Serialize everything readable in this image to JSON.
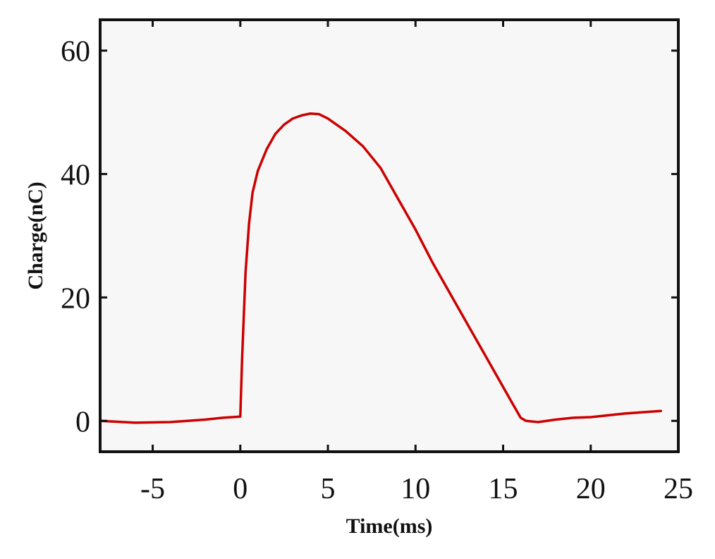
{
  "chart_data": {
    "type": "line",
    "title": "",
    "xlabel": "Time(ms)",
    "ylabel": "Charge(nC)",
    "xlim": [
      -8,
      25
    ],
    "ylim": [
      -5,
      65
    ],
    "xticks": [
      -5,
      0,
      5,
      10,
      15,
      20,
      25
    ],
    "yticks": [
      0,
      20,
      40,
      60
    ],
    "grid": false,
    "legend": "none",
    "colors": {
      "line": "#cc0000",
      "axes": "#111111",
      "plot_bg": "#f7f7f7"
    },
    "series": [
      {
        "x": [
          -8,
          -6,
          -4,
          -2,
          -1,
          0,
          0.1,
          0.3,
          0.5,
          0.7,
          1,
          1.5,
          2,
          2.5,
          3,
          3.5,
          4,
          4.5,
          5,
          6,
          7,
          8,
          9,
          10,
          11,
          12,
          13,
          14,
          15,
          15.5,
          16,
          16.3,
          17,
          18,
          19,
          20,
          21,
          22,
          23,
          24
        ],
        "y": [
          0,
          -0.3,
          -0.2,
          0.2,
          0.5,
          0.7,
          10,
          24,
          32,
          37,
          40.5,
          44,
          46.5,
          48,
          49,
          49.5,
          49.8,
          49.7,
          49,
          47,
          44.5,
          41,
          36,
          31,
          25.5,
          20.5,
          15.5,
          10.5,
          5.5,
          3,
          0.5,
          0,
          -0.2,
          0.2,
          0.5,
          0.6,
          0.9,
          1.2,
          1.4,
          1.6
        ]
      }
    ]
  }
}
